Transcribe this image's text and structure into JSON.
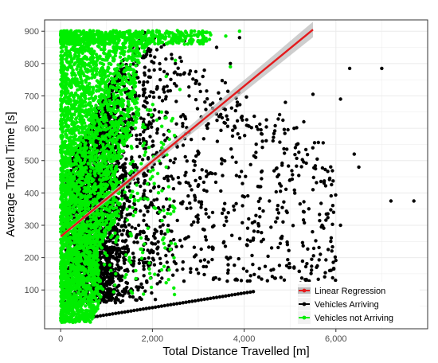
{
  "chart_data": {
    "type": "scatter",
    "title": "",
    "xlabel": "Total Distance Travelled [m]",
    "ylabel": "Average Travel Time [s]",
    "xlim": [
      -350,
      8000
    ],
    "ylim": [
      -20,
      935
    ],
    "grid": true,
    "x_ticks": [
      0,
      2000,
      4000,
      6000
    ],
    "x_tick_labels": [
      "0",
      "2,000",
      "4,000",
      "6,000"
    ],
    "y_ticks": [
      100,
      200,
      300,
      400,
      500,
      600,
      700,
      800,
      900
    ],
    "y_tick_labels": [
      "100",
      "200",
      "300",
      "400",
      "500",
      "600",
      "700",
      "800",
      "900"
    ],
    "legend_position": "bottom-right",
    "colors": {
      "regression": "#e41a1c",
      "confidence_band": "#bdbdbd",
      "arriving": "#000000",
      "not_arriving": "#00ee00",
      "grid": "#ebebeb",
      "panel_border": "#333333"
    },
    "series": [
      {
        "name": "Linear Regression",
        "kind": "line",
        "x": [
          0,
          5500
        ],
        "y": [
          265,
          905
        ]
      },
      {
        "name": "Vehicles Arriving",
        "kind": "scatter",
        "sample_points": [
          [
            7700,
            375
          ],
          [
            7200,
            375
          ],
          [
            7000,
            785
          ],
          [
            6300,
            785
          ],
          [
            6100,
            690
          ],
          [
            5950,
            340
          ],
          [
            6400,
            520
          ],
          [
            6500,
            480
          ],
          [
            5500,
            410
          ],
          [
            5000,
            440
          ],
          [
            4700,
            475
          ],
          [
            4550,
            375
          ],
          [
            5700,
            300
          ],
          [
            6100,
            300
          ],
          [
            5000,
            170
          ],
          [
            4600,
            230
          ],
          [
            4400,
            560
          ],
          [
            5300,
            620
          ],
          [
            5500,
            705
          ],
          [
            4900,
            680
          ],
          [
            3900,
            880
          ],
          [
            3400,
            850
          ],
          [
            3700,
            800
          ],
          [
            3550,
            350
          ],
          [
            3700,
            200
          ],
          [
            4100,
            320
          ],
          [
            4300,
            420
          ],
          [
            3900,
            450
          ],
          [
            4300,
            280
          ],
          [
            4800,
            260
          ],
          [
            3300,
            460
          ],
          [
            3000,
            520
          ],
          [
            3200,
            600
          ],
          [
            2800,
            700
          ],
          [
            3100,
            760
          ],
          [
            2700,
            870
          ],
          [
            2500,
            800
          ],
          [
            2300,
            650
          ],
          [
            2600,
            430
          ],
          [
            2900,
            310
          ],
          [
            2400,
            250
          ],
          [
            2100,
            380
          ],
          [
            2200,
            520
          ],
          [
            1900,
            600
          ],
          [
            1800,
            720
          ],
          [
            2050,
            820
          ],
          [
            1700,
            300
          ],
          [
            1600,
            200
          ],
          [
            1400,
            160
          ],
          [
            1300,
            450
          ],
          [
            1200,
            350
          ],
          [
            1000,
            250
          ],
          [
            900,
            520
          ],
          [
            800,
            400
          ],
          [
            700,
            180
          ]
        ],
        "bulk_extent": {
          "x": [
            0,
            2500
          ],
          "y": [
            40,
            900
          ]
        }
      },
      {
        "name": "Vehicles not Arriving",
        "kind": "scatter",
        "sample_points": [
          [
            3600,
            885
          ],
          [
            3900,
            900
          ],
          [
            3100,
            895
          ],
          [
            2700,
            860
          ],
          [
            3700,
            790
          ],
          [
            2300,
            760
          ],
          [
            2200,
            650
          ],
          [
            2600,
            720
          ],
          [
            2500,
            810
          ],
          [
            2000,
            450
          ],
          [
            2300,
            480
          ],
          [
            1900,
            380
          ],
          [
            1500,
            200
          ],
          [
            1200,
            150
          ],
          [
            900,
            230
          ],
          [
            1100,
            300
          ],
          [
            1450,
            350
          ],
          [
            1700,
            640
          ],
          [
            1600,
            870
          ],
          [
            1300,
            820
          ]
        ],
        "bulk_extent": {
          "x": [
            0,
            1700
          ],
          "y": [
            0,
            900
          ]
        }
      },
      {
        "name": "lower-bound streak",
        "kind": "scatter",
        "x": [
          200,
          4200
        ],
        "y": [
          5,
          95
        ]
      }
    ]
  }
}
